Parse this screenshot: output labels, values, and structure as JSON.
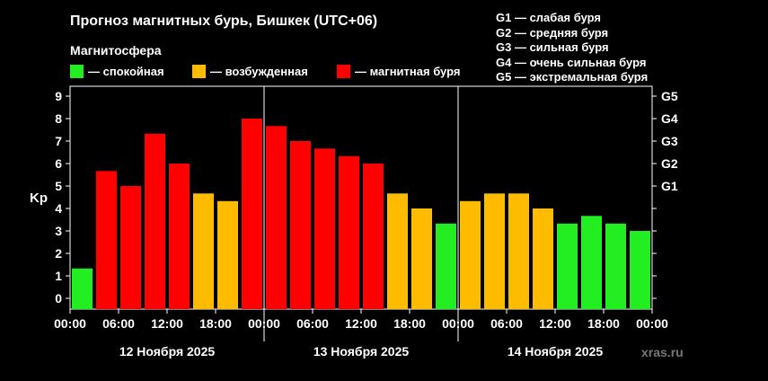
{
  "chart_data": {
    "type": "bar",
    "title": "Прогноз магнитных бурь, Бишкек (UTC+06)",
    "subtitle": "Магнитосфера",
    "ylabel": "Kp",
    "ylim": [
      0,
      9
    ],
    "yticks": [
      0,
      1,
      2,
      3,
      4,
      5,
      6,
      7,
      8,
      9
    ],
    "g_levels": [
      {
        "kp": 5,
        "label": "G1"
      },
      {
        "kp": 6,
        "label": "G2"
      },
      {
        "kp": 7,
        "label": "G3"
      },
      {
        "kp": 8,
        "label": "G4"
      },
      {
        "kp": 9,
        "label": "G5"
      }
    ],
    "xtick_labels": [
      "00:00",
      "06:00",
      "12:00",
      "18:00",
      "00:00",
      "06:00",
      "12:00",
      "18:00",
      "00:00",
      "06:00",
      "12:00",
      "18:00",
      "00:00"
    ],
    "days": [
      "12 Ноября 2025",
      "13 Ноября 2025",
      "14 Ноября 2025"
    ],
    "values": [
      1.33,
      5.67,
      5.0,
      7.33,
      6.0,
      4.67,
      4.33,
      8.0,
      7.67,
      7.0,
      6.67,
      6.33,
      6.0,
      4.67,
      4.0,
      3.33,
      4.33,
      4.67,
      4.67,
      4.0,
      3.33,
      3.67,
      3.33,
      3.0
    ],
    "colors": {
      "calm": "#22ee22",
      "excited": "#ffbb00",
      "storm": "#ff0000"
    },
    "legend": [
      {
        "key": "calm",
        "label": "— спокойная"
      },
      {
        "key": "excited",
        "label": "— возбужденная"
      },
      {
        "key": "storm",
        "label": "— магнитная буря"
      }
    ],
    "storm_scale": [
      "G1 — слабая буря",
      "G2 — средняя буря",
      "G3 — сильная буря",
      "G4 — очень сильная буря",
      "G5 — экстремальная буря"
    ]
  },
  "watermark": "xras.ru"
}
